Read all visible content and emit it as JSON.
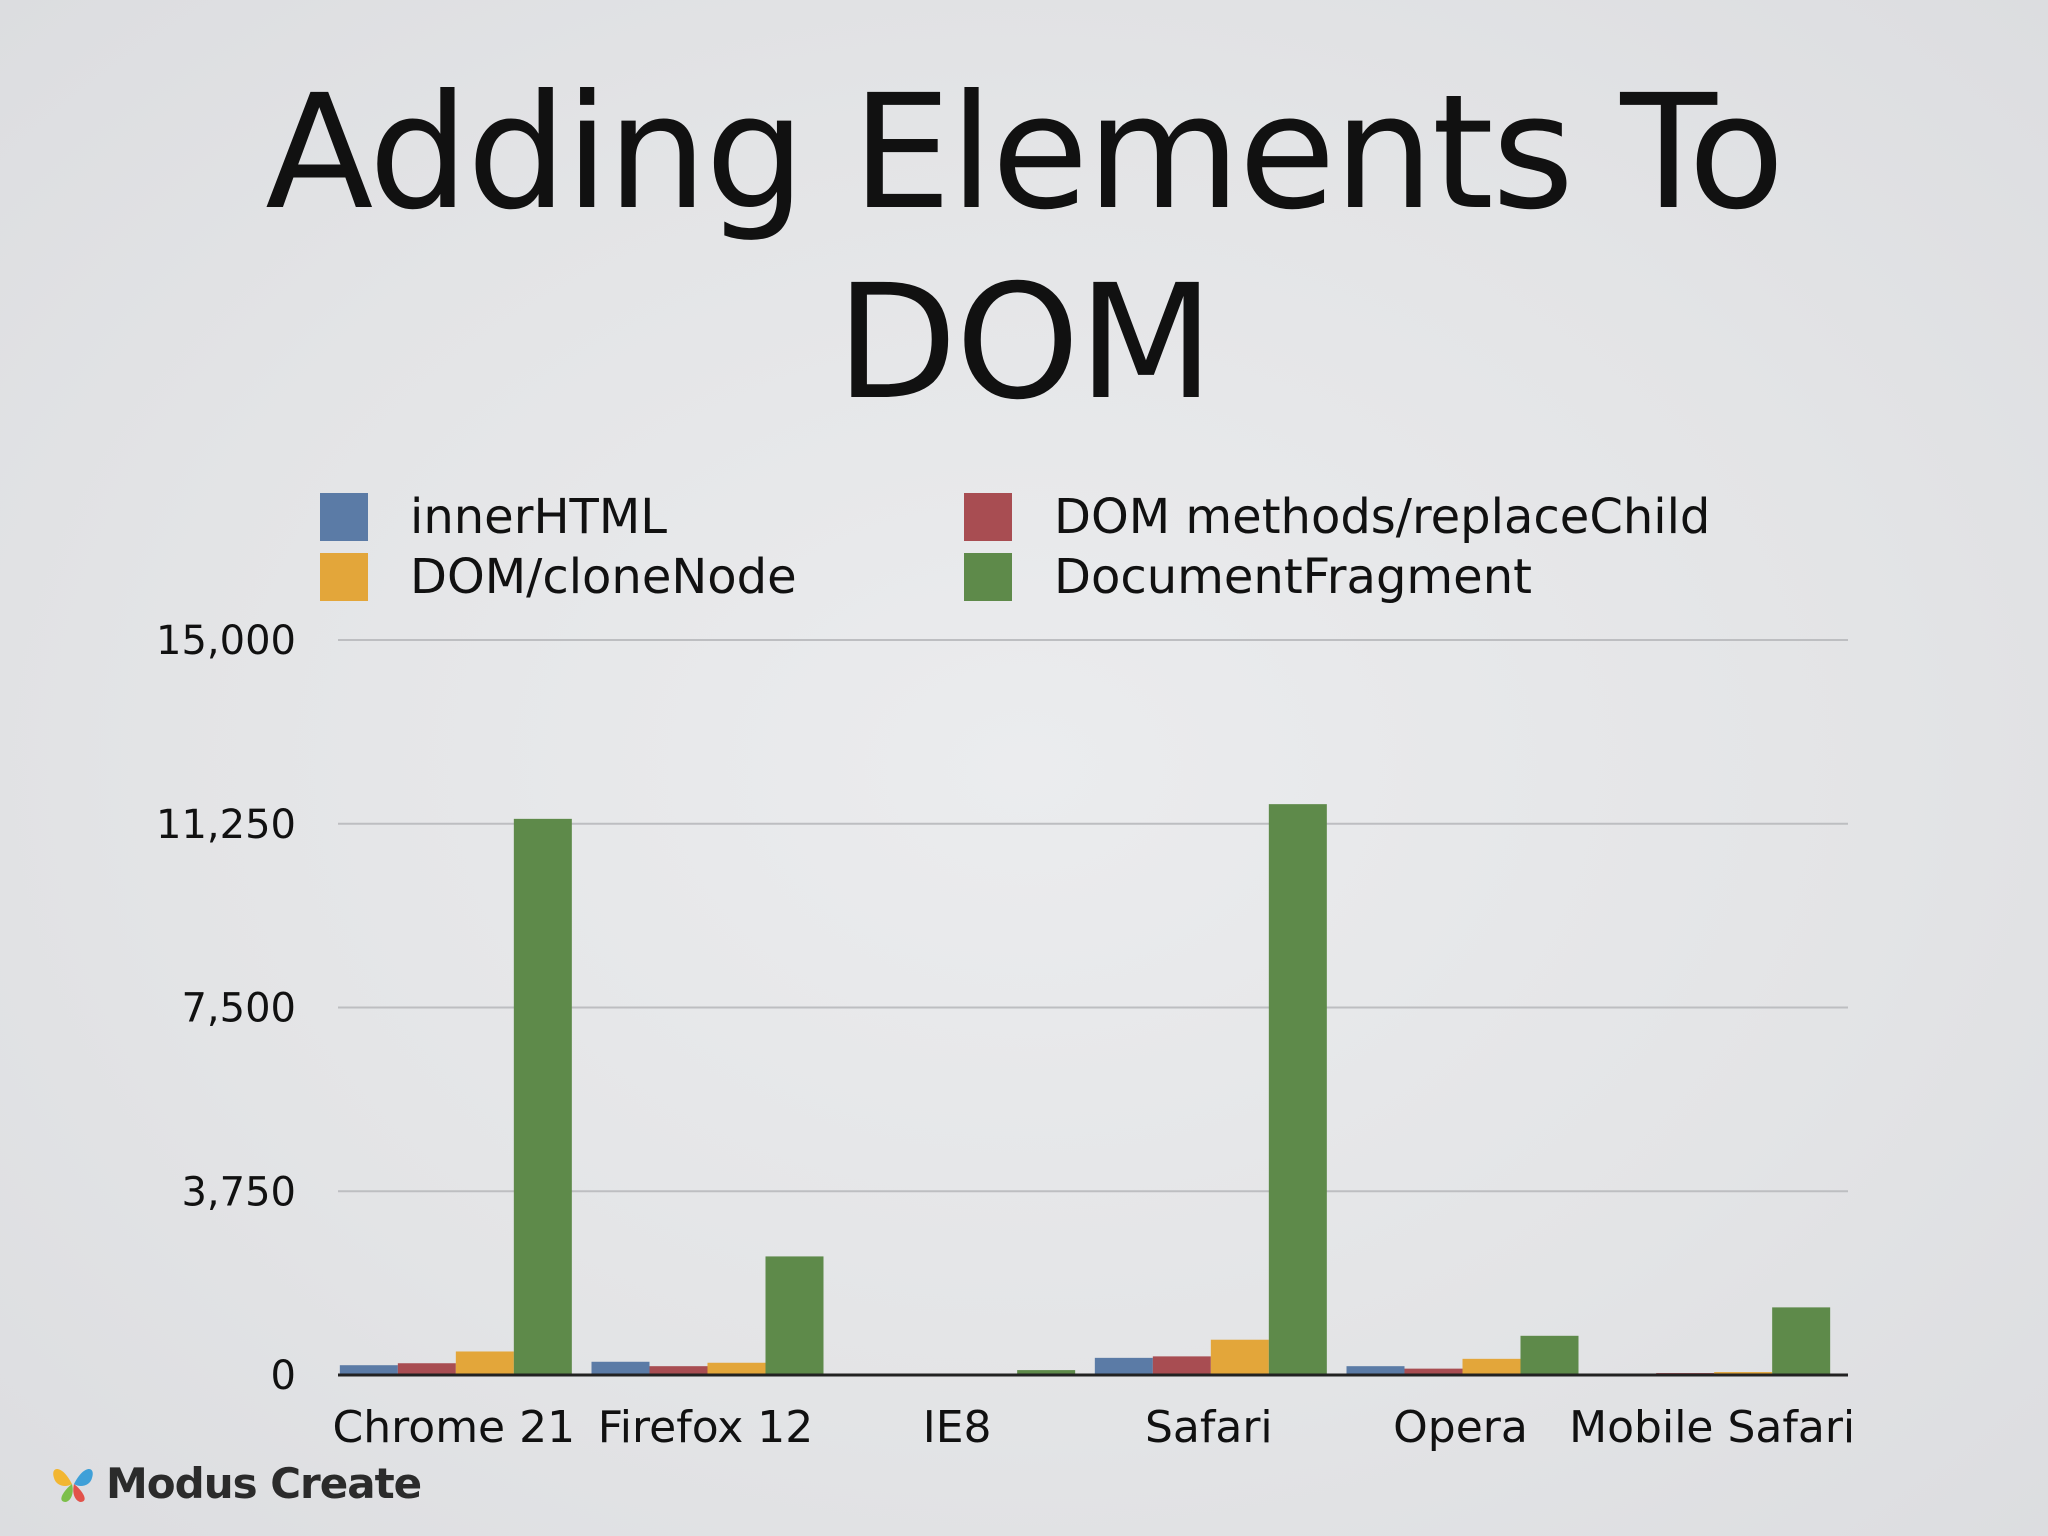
{
  "slide": {
    "title_line1": "Adding Elements To",
    "title_line2": "DOM",
    "logo_text": "Modus Create"
  },
  "chart_data": {
    "type": "bar",
    "categories": [
      "Chrome 21",
      "Firefox 12",
      "IE8",
      "Safari",
      "Opera",
      "Mobile Safari"
    ],
    "series": [
      {
        "name": "innerHTML",
        "color": "#5b7ba6",
        "values": [
          200,
          270,
          0,
          350,
          180,
          30
        ]
      },
      {
        "name": "DOM methods/replaceChild",
        "color": "#a84d52",
        "values": [
          240,
          180,
          0,
          380,
          130,
          40
        ]
      },
      {
        "name": "DOM/cloneNode",
        "color": "#e3a63a",
        "values": [
          480,
          250,
          0,
          720,
          330,
          60
        ]
      },
      {
        "name": "DocumentFragment",
        "color": "#5e8a4a",
        "values": [
          11350,
          2420,
          100,
          11650,
          800,
          1380
        ]
      }
    ],
    "yticks": [
      "0",
      "3,750",
      "7,500",
      "11,250",
      "15,000"
    ],
    "ylim": [
      0,
      15000
    ],
    "grid": true,
    "legend_position": "top"
  }
}
